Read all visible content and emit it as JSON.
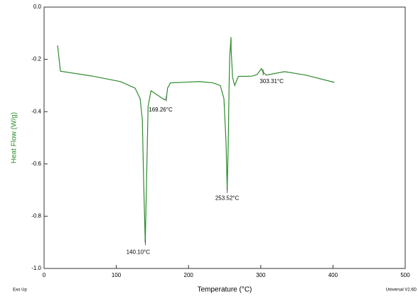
{
  "chart_data": {
    "type": "line",
    "x_label": "Temperature (°C)",
    "y_label": "Heat Flow (W/g)",
    "footer_left": "Exo Up",
    "footer_right": "Universal V2.6D",
    "color": "#2e8b2e",
    "x": [
      18.7,
      22.6,
      67,
      106,
      126,
      133,
      136,
      138,
      140.1,
      142,
      144,
      148,
      156,
      167,
      169.3,
      171,
      175,
      215,
      234,
      244,
      249,
      252,
      253.5,
      255,
      256,
      257,
      258.9,
      259,
      261,
      264,
      269,
      279,
      288,
      295,
      301,
      303.3,
      308,
      333,
      362,
      402
    ],
    "values": [
      -0.147,
      -0.245,
      -0.264,
      -0.285,
      -0.31,
      -0.35,
      -0.43,
      -0.68,
      -0.9,
      -0.65,
      -0.38,
      -0.32,
      -0.335,
      -0.355,
      -0.35,
      -0.31,
      -0.29,
      -0.285,
      -0.29,
      -0.3,
      -0.35,
      -0.52,
      -0.7,
      -0.52,
      -0.33,
      -0.19,
      -0.115,
      -0.16,
      -0.27,
      -0.3,
      -0.265,
      -0.265,
      -0.264,
      -0.258,
      -0.235,
      -0.25,
      -0.26,
      -0.247,
      -0.26,
      -0.288
    ],
    "annotations": [
      {
        "text": "140.10°C",
        "x": 140.1,
        "y": -0.9
      },
      {
        "text": "169.26°C",
        "x": 169.3,
        "y": -0.35
      },
      {
        "text": "253.52°C",
        "x": 253.5,
        "y": -0.7
      },
      {
        "text": "303.31°C",
        "x": 303.3,
        "y": -0.25
      }
    ],
    "xlim": [
      0,
      500
    ],
    "xticks": [
      0,
      100,
      200,
      300,
      400,
      500
    ],
    "ylim": [
      -1,
      0
    ],
    "yticks": [
      {
        "value": 0,
        "label": "0.0"
      },
      -0.2,
      -0.4,
      -0.6,
      -0.8,
      {
        "value": -1,
        "label": "-1.0"
      }
    ]
  }
}
